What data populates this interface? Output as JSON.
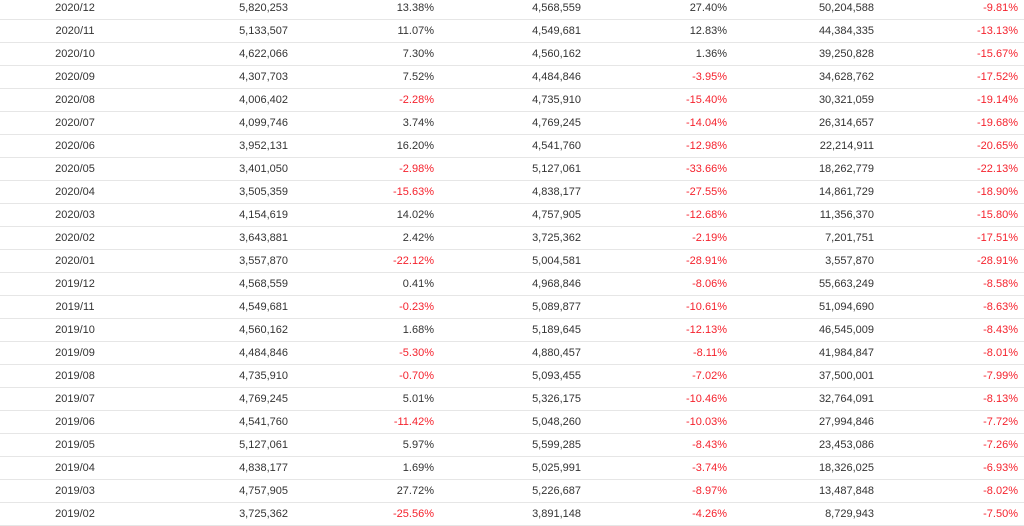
{
  "colors": {
    "negative": "#f5222d",
    "text": "#333333",
    "row_border": "#e6e6e6"
  },
  "rows": [
    {
      "date": "2020/12",
      "v1": "5,820,253",
      "p1": "13.38%",
      "v2": "4,568,559",
      "p2": "27.40%",
      "v3": "50,204,588",
      "p3": "-9.81%"
    },
    {
      "date": "2020/11",
      "v1": "5,133,507",
      "p1": "11.07%",
      "v2": "4,549,681",
      "p2": "12.83%",
      "v3": "44,384,335",
      "p3": "-13.13%"
    },
    {
      "date": "2020/10",
      "v1": "4,622,066",
      "p1": "7.30%",
      "v2": "4,560,162",
      "p2": "1.36%",
      "v3": "39,250,828",
      "p3": "-15.67%"
    },
    {
      "date": "2020/09",
      "v1": "4,307,703",
      "p1": "7.52%",
      "v2": "4,484,846",
      "p2": "-3.95%",
      "v3": "34,628,762",
      "p3": "-17.52%"
    },
    {
      "date": "2020/08",
      "v1": "4,006,402",
      "p1": "-2.28%",
      "v2": "4,735,910",
      "p2": "-15.40%",
      "v3": "30,321,059",
      "p3": "-19.14%"
    },
    {
      "date": "2020/07",
      "v1": "4,099,746",
      "p1": "3.74%",
      "v2": "4,769,245",
      "p2": "-14.04%",
      "v3": "26,314,657",
      "p3": "-19.68%"
    },
    {
      "date": "2020/06",
      "v1": "3,952,131",
      "p1": "16.20%",
      "v2": "4,541,760",
      "p2": "-12.98%",
      "v3": "22,214,911",
      "p3": "-20.65%"
    },
    {
      "date": "2020/05",
      "v1": "3,401,050",
      "p1": "-2.98%",
      "v2": "5,127,061",
      "p2": "-33.66%",
      "v3": "18,262,779",
      "p3": "-22.13%"
    },
    {
      "date": "2020/04",
      "v1": "3,505,359",
      "p1": "-15.63%",
      "v2": "4,838,177",
      "p2": "-27.55%",
      "v3": "14,861,729",
      "p3": "-18.90%"
    },
    {
      "date": "2020/03",
      "v1": "4,154,619",
      "p1": "14.02%",
      "v2": "4,757,905",
      "p2": "-12.68%",
      "v3": "11,356,370",
      "p3": "-15.80%"
    },
    {
      "date": "2020/02",
      "v1": "3,643,881",
      "p1": "2.42%",
      "v2": "3,725,362",
      "p2": "-2.19%",
      "v3": "7,201,751",
      "p3": "-17.51%"
    },
    {
      "date": "2020/01",
      "v1": "3,557,870",
      "p1": "-22.12%",
      "v2": "5,004,581",
      "p2": "-28.91%",
      "v3": "3,557,870",
      "p3": "-28.91%"
    },
    {
      "date": "2019/12",
      "v1": "4,568,559",
      "p1": "0.41%",
      "v2": "4,968,846",
      "p2": "-8.06%",
      "v3": "55,663,249",
      "p3": "-8.58%"
    },
    {
      "date": "2019/11",
      "v1": "4,549,681",
      "p1": "-0.23%",
      "v2": "5,089,877",
      "p2": "-10.61%",
      "v3": "51,094,690",
      "p3": "-8.63%"
    },
    {
      "date": "2019/10",
      "v1": "4,560,162",
      "p1": "1.68%",
      "v2": "5,189,645",
      "p2": "-12.13%",
      "v3": "46,545,009",
      "p3": "-8.43%"
    },
    {
      "date": "2019/09",
      "v1": "4,484,846",
      "p1": "-5.30%",
      "v2": "4,880,457",
      "p2": "-8.11%",
      "v3": "41,984,847",
      "p3": "-8.01%"
    },
    {
      "date": "2019/08",
      "v1": "4,735,910",
      "p1": "-0.70%",
      "v2": "5,093,455",
      "p2": "-7.02%",
      "v3": "37,500,001",
      "p3": "-7.99%"
    },
    {
      "date": "2019/07",
      "v1": "4,769,245",
      "p1": "5.01%",
      "v2": "5,326,175",
      "p2": "-10.46%",
      "v3": "32,764,091",
      "p3": "-8.13%"
    },
    {
      "date": "2019/06",
      "v1": "4,541,760",
      "p1": "-11.42%",
      "v2": "5,048,260",
      "p2": "-10.03%",
      "v3": "27,994,846",
      "p3": "-7.72%"
    },
    {
      "date": "2019/05",
      "v1": "5,127,061",
      "p1": "5.97%",
      "v2": "5,599,285",
      "p2": "-8.43%",
      "v3": "23,453,086",
      "p3": "-7.26%"
    },
    {
      "date": "2019/04",
      "v1": "4,838,177",
      "p1": "1.69%",
      "v2": "5,025,991",
      "p2": "-3.74%",
      "v3": "18,326,025",
      "p3": "-6.93%"
    },
    {
      "date": "2019/03",
      "v1": "4,757,905",
      "p1": "27.72%",
      "v2": "5,226,687",
      "p2": "-8.97%",
      "v3": "13,487,848",
      "p3": "-8.02%"
    },
    {
      "date": "2019/02",
      "v1": "3,725,362",
      "p1": "-25.56%",
      "v2": "3,891,148",
      "p2": "-4.26%",
      "v3": "8,729,943",
      "p3": "-7.50%"
    }
  ]
}
